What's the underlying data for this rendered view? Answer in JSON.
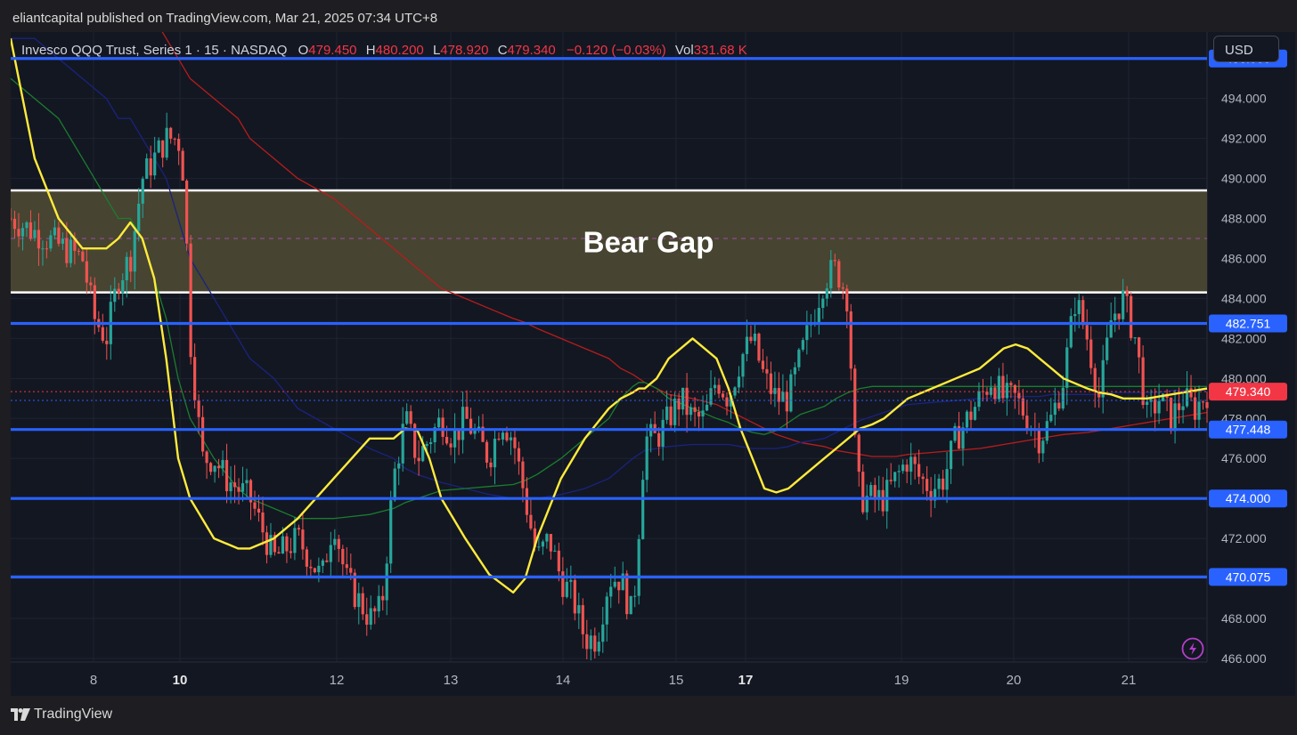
{
  "publisher_line": "eliantcapital published on TradingView.com, Mar 21, 2025 07:34 UTC+8",
  "legend": {
    "instrument": "Invesco QQQ Trust, Series 1 · 15 · NASDAQ",
    "o_label": "O",
    "o": "479.450",
    "h_label": "H",
    "h": "480.200",
    "l_label": "L",
    "l": "478.920",
    "c_label": "C",
    "c": "479.340",
    "change": "−0.120 (−0.03%)",
    "vol_label": "Vol",
    "vol": "331.68 K"
  },
  "currency": "USD",
  "brand": "TradingView",
  "colors": {
    "bg": "#131722",
    "up": "#26a69a",
    "down": "#ef5350",
    "level": "#2962ff",
    "zone": "#4a4733",
    "ema_fast": "#ffeb3b",
    "ema_mid": "#1b7d2e",
    "ema_slow_blue": "#1a237e",
    "ema_slow_red": "#b71c1c"
  },
  "chart_data": {
    "type": "candlestick",
    "title": "Bear Gap",
    "x_ticks": [
      {
        "label": "8",
        "bold": false
      },
      {
        "label": "10",
        "bold": true
      },
      {
        "label": "12",
        "bold": false
      },
      {
        "label": "13",
        "bold": false
      },
      {
        "label": "14",
        "bold": false
      },
      {
        "label": "15",
        "bold": false
      },
      {
        "label": "17",
        "bold": true
      },
      {
        "label": "19",
        "bold": false
      },
      {
        "label": "20",
        "bold": false
      },
      {
        "label": "21",
        "bold": false
      }
    ],
    "y_ticks": [
      "496.000",
      "494.000",
      "492.000",
      "490.000",
      "488.000",
      "486.000",
      "484.000",
      "482.000",
      "480.000",
      "478.000",
      "476.000",
      "474.000",
      "472.000",
      "470.000",
      "468.000",
      "466.000"
    ],
    "ylim": [
      466,
      497.5
    ],
    "bear_gap_zone": {
      "low": 484.3,
      "high": 489.4,
      "mid": 487.0,
      "label": "Bear Gap"
    },
    "levels": [
      {
        "value": 496.0,
        "label": "496.000"
      },
      {
        "value": 482.751,
        "label": "482.751"
      },
      {
        "value": 477.448,
        "label": "477.448"
      },
      {
        "value": 474.0,
        "label": "474.000"
      },
      {
        "value": 470.075,
        "label": "470.075"
      }
    ],
    "last_price": {
      "value": 479.34,
      "label": "479.340"
    },
    "dotted_level": 478.9,
    "ema_fast_x_pct": [
      0,
      2,
      4,
      6,
      8,
      9,
      10,
      11,
      12,
      13,
      14,
      15,
      17,
      19,
      20,
      22,
      24,
      27,
      30,
      32,
      33,
      34,
      35,
      36,
      38,
      40,
      42,
      43,
      44,
      46,
      48,
      50,
      51,
      52,
      52.5,
      53,
      54,
      55,
      57,
      59,
      60,
      61,
      62,
      63,
      64,
      65,
      66,
      68,
      69,
      70,
      71,
      72,
      73,
      74,
      75,
      77,
      79,
      81,
      82,
      83,
      84,
      85,
      86,
      87,
      88,
      90,
      91,
      92,
      93,
      94,
      95,
      96,
      97,
      98,
      99,
      100
    ],
    "ema_fast_y": [
      497,
      491,
      488,
      486.5,
      486.5,
      487,
      487.8,
      487,
      485,
      481,
      476,
      474,
      472,
      471.5,
      471.5,
      472,
      473,
      475,
      477,
      477,
      477.5,
      477.4,
      476,
      474,
      472,
      470.2,
      469.3,
      470,
      472,
      475,
      477,
      478.5,
      479,
      479.3,
      479.5,
      479.5,
      480,
      481,
      482,
      481,
      479.5,
      477.5,
      476,
      474.5,
      474.3,
      474.5,
      475,
      476,
      476.5,
      477,
      477.5,
      477.7,
      478,
      478.5,
      479,
      479.5,
      480,
      480.5,
      481,
      481.5,
      481.7,
      481.5,
      481,
      480.5,
      480,
      479.5,
      479.3,
      479.2,
      479,
      479,
      479,
      479.1,
      479.2,
      479.3,
      479.4,
      479.5
    ],
    "ema_mid_y": [
      495,
      494,
      493,
      491,
      489,
      488,
      488,
      487,
      485,
      483,
      480,
      478,
      476,
      474.5,
      474,
      473.5,
      473,
      473,
      473.2,
      473.5,
      473.8,
      474,
      474.2,
      474.4,
      474.5,
      474.6,
      474.7,
      474.9,
      475.2,
      476,
      477,
      478,
      479,
      479.6,
      479.8,
      479.8,
      479.5,
      479,
      478.5,
      478,
      477.8,
      477.5,
      477.3,
      477.2,
      477.4,
      477.8,
      478.2,
      478.6,
      479,
      479.3,
      479.5,
      479.6,
      479.6,
      479.6,
      479.6,
      479.6,
      479.6,
      479.6,
      479.6,
      479.6,
      479.6,
      479.6,
      479.6,
      479.6,
      479.6,
      479.6,
      479.6,
      479.6,
      479.6,
      479.6,
      479.6,
      479.6,
      479.6,
      479.6,
      479.6,
      479.6
    ],
    "ema_slow_blue_y": [
      497,
      497,
      496,
      495,
      494,
      493,
      493,
      492,
      491,
      490,
      488,
      486,
      484,
      482,
      481,
      480,
      478.5,
      477.5,
      476.5,
      476,
      475.5,
      475.2,
      475,
      474.8,
      474.5,
      474.2,
      474,
      474,
      474,
      474.2,
      474.5,
      475,
      475.5,
      476,
      476.2,
      476.4,
      476.5,
      476.6,
      476.7,
      476.7,
      476.7,
      476.6,
      476.5,
      476.5,
      476.5,
      476.6,
      476.8,
      477,
      477.3,
      477.6,
      477.9,
      478.1,
      478.3,
      478.5,
      478.7,
      478.8,
      478.9,
      479,
      479,
      479.1,
      479.1,
      479.1,
      479.1,
      479.2,
      479.2,
      479.2,
      479.2,
      479.3,
      479.3,
      479.3,
      479.3,
      479.3,
      479.4,
      479.4,
      479.4,
      479.4
    ],
    "ema_slow_red_y": [
      500,
      500,
      500,
      500,
      500,
      500,
      499.5,
      499,
      498,
      497,
      496,
      495,
      494,
      493,
      492,
      491,
      490,
      489,
      487.5,
      486.5,
      486,
      485.5,
      485,
      484.5,
      484,
      483.5,
      483,
      482.8,
      482.5,
      482,
      481.5,
      481,
      480.5,
      480.2,
      480,
      479.8,
      479.5,
      479.2,
      479,
      478.7,
      478.4,
      478.1,
      477.8,
      477.5,
      477.2,
      477,
      476.8,
      476.6,
      476.4,
      476.3,
      476.2,
      476.1,
      476.1,
      476.1,
      476.2,
      476.3,
      476.4,
      476.5,
      476.6,
      476.7,
      476.8,
      476.9,
      477,
      477.1,
      477.2,
      477.3,
      477.4,
      477.5,
      477.6,
      477.7,
      477.8,
      477.9,
      478,
      478.1,
      478.2,
      478.3
    ]
  }
}
